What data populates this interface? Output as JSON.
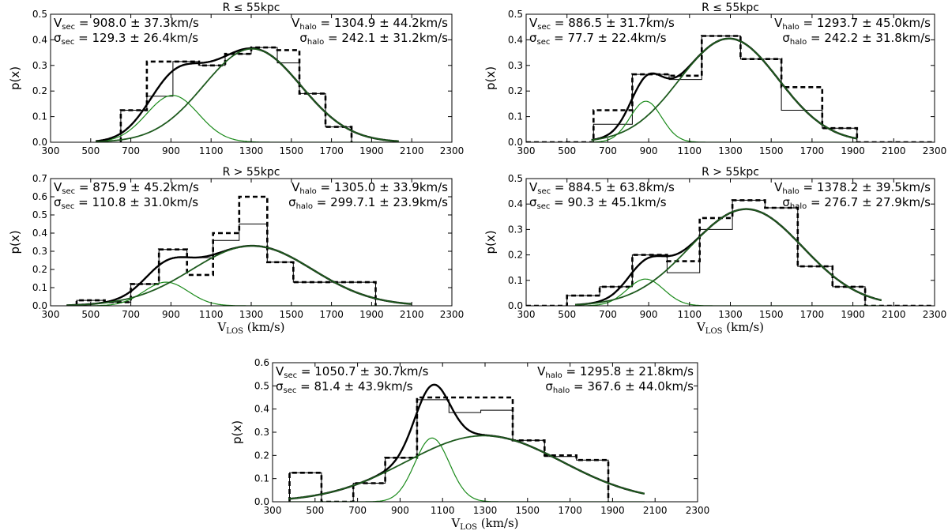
{
  "figure": {
    "ylabel": "p(x)",
    "xlabel_main": "V",
    "xlabel_sub": "LOS",
    "xlabel_unit": " (km/s)"
  },
  "chart_data": [
    {
      "type": "histogram",
      "title": "R ≤ 55kpc",
      "ylabel": "p(x)",
      "xlabel": "",
      "xlim": [
        300,
        2300
      ],
      "ylim": [
        0,
        0.5
      ],
      "xticks": [
        300,
        500,
        700,
        900,
        1100,
        1300,
        1500,
        1700,
        1900,
        2100,
        2300
      ],
      "yticks": [
        0.0,
        0.1,
        0.2,
        0.3,
        0.4,
        0.5
      ],
      "annotations": {
        "left": [
          "V_sec = 908.0 ± 37.3km/s",
          "σ_sec = 129.3 ± 26.4km/s"
        ],
        "right": [
          "V_halo = 1304.9 ± 44.2km/s",
          "σ_halo = 242.1 ± 31.2km/s"
        ]
      },
      "fit": {
        "v_sec": 908.0,
        "s_sec": 129.3,
        "v_halo": 1304.9,
        "s_halo": 242.1,
        "a_sec": 0.183,
        "a_halo": 0.365,
        "range": [
          525,
          2035
        ]
      },
      "hist_solid": {
        "edges": [
          650,
          780,
          910,
          1040,
          1170,
          1300,
          1430,
          1540,
          1670,
          1800
        ],
        "values": [
          0.125,
          0.18,
          0.315,
          0.3,
          0.345,
          0.37,
          0.31,
          0.19,
          0.06
        ]
      },
      "hist_dashed": {
        "edges": [
          650,
          780,
          910,
          1040,
          1170,
          1300,
          1430,
          1540,
          1670,
          1800
        ],
        "values": [
          0.125,
          0.315,
          0.315,
          0.3,
          0.345,
          0.37,
          0.36,
          0.19,
          0.06
        ]
      }
    },
    {
      "type": "histogram",
      "title": "R ≤ 55kpc",
      "ylabel": "p(x)",
      "xlabel": "",
      "xlim": [
        300,
        2300
      ],
      "ylim": [
        0,
        0.5
      ],
      "xticks": [
        300,
        500,
        700,
        900,
        1100,
        1300,
        1500,
        1700,
        1900,
        2100,
        2300
      ],
      "yticks": [
        0.0,
        0.1,
        0.2,
        0.3,
        0.4,
        0.5
      ],
      "annotations": {
        "left": [
          "V_sec = 886.5 ± 31.7km/s",
          "σ_sec = 77.7 ± 22.4km/s"
        ],
        "right": [
          "V_halo = 1293.7 ± 45.0km/s",
          "σ_halo = 242.2 ± 31.8km/s"
        ]
      },
      "fit": {
        "v_sec": 886.5,
        "s_sec": 77.7,
        "v_halo": 1293.7,
        "s_halo": 242.2,
        "a_sec": 0.16,
        "a_halo": 0.405,
        "range": [
          620,
          1920
        ]
      },
      "hist_solid": {
        "edges": [
          300,
          630,
          820,
          1000,
          1160,
          1350,
          1550,
          1750,
          1920,
          2300
        ],
        "values": [
          0.0,
          0.07,
          0.265,
          0.245,
          0.415,
          0.325,
          0.125,
          0.055,
          0.0
        ]
      },
      "hist_dashed": {
        "edges": [
          300,
          630,
          820,
          1000,
          1160,
          1350,
          1550,
          1750,
          1920,
          2300
        ],
        "values": [
          0.0,
          0.125,
          0.265,
          0.26,
          0.415,
          0.325,
          0.215,
          0.055,
          0.0
        ]
      }
    },
    {
      "type": "histogram",
      "title": "R > 55kpc",
      "ylabel": "p(x)",
      "xlabel": "VLOS (km/s)",
      "xlim": [
        300,
        2300
      ],
      "ylim": [
        0,
        0.7
      ],
      "xticks": [
        300,
        500,
        700,
        900,
        1100,
        1300,
        1500,
        1700,
        1900,
        2100,
        2300
      ],
      "yticks": [
        0.0,
        0.1,
        0.2,
        0.3,
        0.4,
        0.5,
        0.6,
        0.7
      ],
      "annotations": {
        "left": [
          "V_sec = 875.9 ± 45.2km/s",
          "σ_sec = 110.8 ± 31.0km/s"
        ],
        "right": [
          "V_halo = 1305.0 ± 33.9km/s",
          "σ_halo = 299.7.1 ± 23.9km/s"
        ]
      },
      "fit": {
        "v_sec": 875.9,
        "s_sec": 110.8,
        "v_halo": 1305.0,
        "s_halo": 299.7,
        "a_sec": 0.13,
        "a_halo": 0.33,
        "range": [
          380,
          2100
        ]
      },
      "hist_solid": {
        "edges": [
          430,
          570,
          700,
          840,
          980,
          1110,
          1240,
          1380,
          1510,
          1920
        ],
        "values": [
          0.03,
          0.02,
          0.12,
          0.31,
          0.265,
          0.36,
          0.45,
          0.24,
          0.13
        ]
      },
      "hist_dashed": {
        "edges": [
          430,
          570,
          700,
          840,
          980,
          1110,
          1240,
          1380,
          1510,
          1920
        ],
        "values": [
          0.03,
          0.02,
          0.12,
          0.31,
          0.17,
          0.4,
          0.6,
          0.24,
          0.13
        ]
      }
    },
    {
      "type": "histogram",
      "title": "R > 55kpc",
      "ylabel": "p(x)",
      "xlabel": "VLOS (km/s)",
      "xlim": [
        300,
        2300
      ],
      "ylim": [
        0,
        0.5
      ],
      "xticks": [
        300,
        500,
        700,
        900,
        1100,
        1300,
        1500,
        1700,
        1900,
        2100,
        2300
      ],
      "yticks": [
        0.0,
        0.1,
        0.2,
        0.3,
        0.4,
        0.5
      ],
      "annotations": {
        "left": [
          "V_sec = 884.5 ± 63.8km/s",
          "σ_sec = 90.3 ± 45.1km/s"
        ],
        "right": [
          "V_halo = 1378.2 ± 39.5km/s",
          "σ_halo = 276.7 ± 27.9km/s"
        ]
      },
      "fit": {
        "v_sec": 884.5,
        "s_sec": 90.3,
        "v_halo": 1378.2,
        "s_halo": 276.7,
        "a_sec": 0.105,
        "a_halo": 0.38,
        "range": [
          540,
          2040
        ]
      },
      "hist_solid": {
        "edges": [
          300,
          500,
          660,
          820,
          990,
          1150,
          1310,
          1470,
          1630,
          1800,
          1960,
          2300
        ],
        "values": [
          0.0,
          0.04,
          0.075,
          0.2,
          0.13,
          0.3,
          0.415,
          0.385,
          0.155,
          0.075,
          0.0
        ]
      },
      "hist_dashed": {
        "edges": [
          300,
          500,
          660,
          820,
          990,
          1150,
          1310,
          1470,
          1630,
          1800,
          1960,
          2300
        ],
        "values": [
          0.0,
          0.04,
          0.075,
          0.2,
          0.175,
          0.345,
          0.415,
          0.385,
          0.155,
          0.075,
          0.0
        ]
      }
    },
    {
      "type": "histogram",
      "title": "",
      "ylabel": "p(x)",
      "xlabel": "VLOS (km/s)",
      "xlim": [
        300,
        2300
      ],
      "ylim": [
        0,
        0.6
      ],
      "xticks": [
        300,
        500,
        700,
        900,
        1100,
        1300,
        1500,
        1700,
        1900,
        2100,
        2300
      ],
      "yticks": [
        0.0,
        0.1,
        0.2,
        0.3,
        0.4,
        0.5,
        0.6
      ],
      "annotations": {
        "left": [
          "V_sec = 1050.7 ± 30.7km/s",
          "σ_sec = 81.4 ± 43.9km/s"
        ],
        "right": [
          "V_halo = 1295.8 ± 21.8km/s",
          "σ_halo = 367.6 ± 44.0km/s"
        ]
      },
      "fit": {
        "v_sec": 1050.7,
        "s_sec": 81.4,
        "v_halo": 1295.8,
        "s_halo": 367.6,
        "a_sec": 0.275,
        "a_halo": 0.285,
        "range": [
          375,
          2050
        ]
      },
      "hist_solid": {
        "edges": [
          380,
          530,
          680,
          830,
          980,
          1130,
          1280,
          1430,
          1580,
          1730,
          1880
        ],
        "values": [
          0.125,
          0.0,
          0.08,
          0.19,
          0.44,
          0.385,
          0.395,
          0.265,
          0.195,
          0.18
        ]
      },
      "hist_dashed": {
        "edges": [
          380,
          530,
          680,
          830,
          980,
          1130,
          1280,
          1430,
          1580,
          1730,
          1880
        ],
        "values": [
          0.125,
          0.0,
          0.08,
          0.19,
          0.45,
          0.45,
          0.45,
          0.265,
          0.2,
          0.18
        ]
      }
    }
  ]
}
